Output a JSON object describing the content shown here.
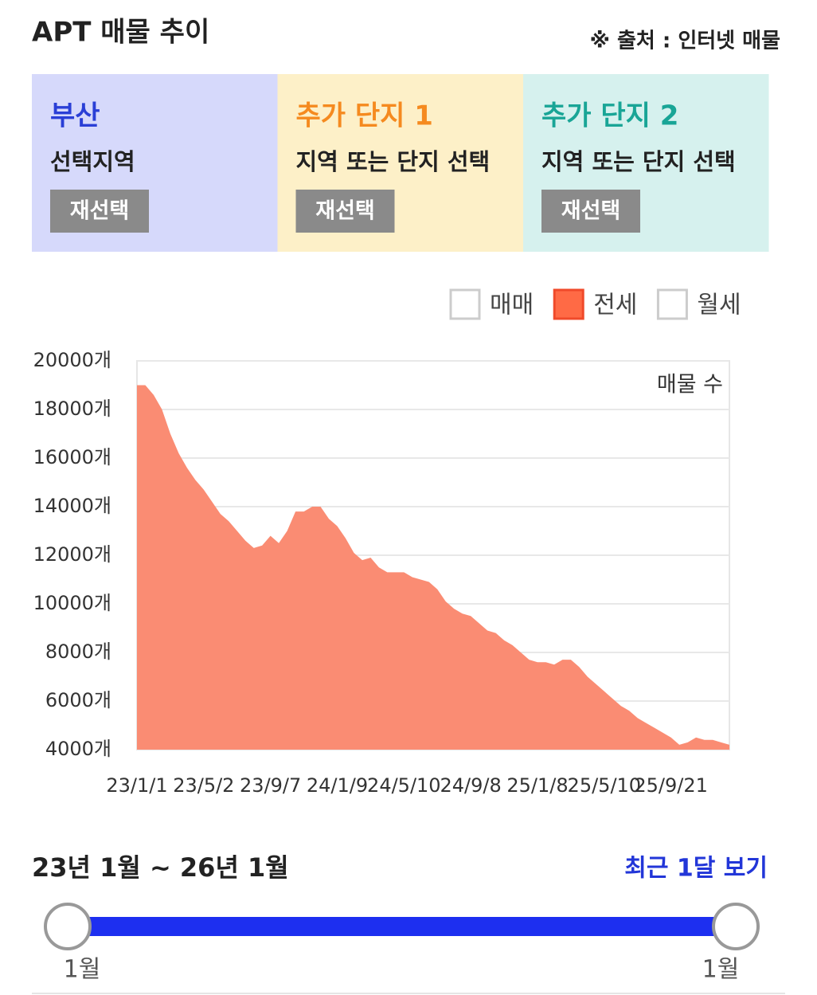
{
  "header": {
    "title": "APT 매물 추이",
    "source": "※ 출처 : 인터넷 매물"
  },
  "panels": [
    {
      "title": "부산",
      "subtitle": "선택지역",
      "button": "재선택",
      "background": "#d6d9fb",
      "title_color": "#2a3fd6"
    },
    {
      "title": "추가 단지 1",
      "subtitle": "지역 또는 단지 선택",
      "button": "재선택",
      "background": "#fdf0c8",
      "title_color": "#f58a1f"
    },
    {
      "title": "추가 단지 2",
      "subtitle": "지역 또는 단지 선택",
      "button": "재선택",
      "background": "#d6f1ee",
      "title_color": "#19a596"
    }
  ],
  "chart_data": {
    "type": "area",
    "annotation": "매물 수",
    "legend": [
      {
        "label": "매매",
        "checked": false
      },
      {
        "label": "전세",
        "checked": true,
        "color": "#ff6a45"
      },
      {
        "label": "월세",
        "checked": false
      }
    ],
    "categories": [
      "23/1/1",
      null,
      null,
      null,
      null,
      null,
      null,
      null,
      "23/5/2",
      null,
      null,
      null,
      null,
      null,
      null,
      null,
      "23/9/7",
      null,
      null,
      null,
      null,
      null,
      null,
      null,
      "24/1/9",
      null,
      null,
      null,
      null,
      null,
      null,
      null,
      "24/5/10",
      null,
      null,
      null,
      null,
      null,
      null,
      null,
      "24/9/8",
      null,
      null,
      null,
      null,
      null,
      null,
      null,
      "25/1/8",
      null,
      null,
      null,
      null,
      null,
      null,
      null,
      "25/5/10",
      null,
      null,
      null,
      null,
      null,
      null,
      null,
      "25/9/21",
      null,
      null,
      null,
      null,
      null,
      null,
      null
    ],
    "series": [
      {
        "color": "#fa8c73",
        "values": [
          19000,
          19000,
          18600,
          18000,
          17000,
          16200,
          15600,
          15100,
          14700,
          14200,
          13700,
          13400,
          13000,
          12600,
          12300,
          12400,
          12800,
          12500,
          13000,
          13800,
          13800,
          14000,
          14000,
          13500,
          13200,
          12700,
          12100,
          11800,
          11900,
          11500,
          11300,
          11300,
          11300,
          11100,
          11000,
          10900,
          10600,
          10100,
          9800,
          9600,
          9500,
          9200,
          8900,
          8800,
          8500,
          8300,
          8000,
          7700,
          7600,
          7600,
          7500,
          7700,
          7700,
          7400,
          7000,
          6700,
          6400,
          6100,
          5800,
          5600,
          5300,
          5100,
          4900,
          4700,
          4500,
          4200,
          4300,
          4500,
          4400,
          4400,
          4300,
          4200
        ]
      }
    ],
    "ylim": [
      4000,
      20000
    ],
    "yticks": [
      {
        "value": 4000,
        "label": "4000개"
      },
      {
        "value": 6000,
        "label": "6000개"
      },
      {
        "value": 8000,
        "label": "8000개"
      },
      {
        "value": 10000,
        "label": "10000개"
      },
      {
        "value": 12000,
        "label": "12000개"
      },
      {
        "value": 14000,
        "label": "14000개"
      },
      {
        "value": 16000,
        "label": "16000개"
      },
      {
        "value": 18000,
        "label": "18000개"
      },
      {
        "value": 20000,
        "label": "20000개"
      }
    ],
    "grid": true
  },
  "range": {
    "label": "23년 1월 ~ 26년 1월",
    "link": "최근 1달 보기",
    "start": "1월",
    "end": "1월"
  }
}
